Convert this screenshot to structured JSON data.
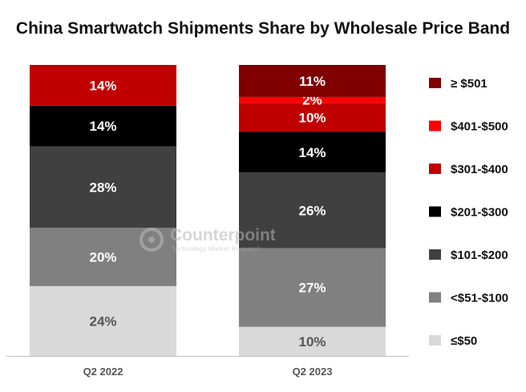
{
  "chart_data": {
    "type": "bar",
    "stacked": true,
    "title": "China Smartwatch Shipments Share by Wholesale Price Band",
    "categories": [
      "Q2 2022",
      "Q2 2023"
    ],
    "series": [
      {
        "name": "≤$50",
        "color": "#d9d9d9",
        "text_color": "#555555",
        "values": [
          24,
          10
        ],
        "labels": [
          "24%",
          "10%"
        ]
      },
      {
        "name": "<$51-$100",
        "color": "#808080",
        "text_color": "#ffffff",
        "values": [
          20,
          27
        ],
        "labels": [
          "20%",
          "27%"
        ]
      },
      {
        "name": "$101-$200",
        "color": "#404040",
        "text_color": "#ffffff",
        "values": [
          28,
          26
        ],
        "labels": [
          "28%",
          "26%"
        ]
      },
      {
        "name": "$201-$300",
        "color": "#000000",
        "text_color": "#ffffff",
        "values": [
          14,
          14
        ],
        "labels": [
          "14%",
          "14%"
        ]
      },
      {
        "name": "$301-$400",
        "color": "#c00000",
        "text_color": "#ffffff",
        "values": [
          14,
          10
        ],
        "labels": [
          "14%",
          "10%"
        ]
      },
      {
        "name": "$401-$500",
        "color": "#ff0000",
        "text_color": "#ffffff",
        "values": [
          0,
          2
        ],
        "labels": [
          "",
          "2%"
        ]
      },
      {
        "name": "≥ $501",
        "color": "#800000",
        "text_color": "#ffffff",
        "values": [
          0,
          11
        ],
        "labels": [
          "",
          "11%"
        ]
      }
    ],
    "legend_order": [
      "≥ $501",
      "$401-$500",
      "$301-$400",
      "$201-$300",
      "$101-$200",
      "<$51-$100",
      "≤$50"
    ],
    "legend_position": "right",
    "xlabel": "",
    "ylabel": "",
    "ylim": [
      0,
      100
    ],
    "grid": false
  },
  "watermark": {
    "name": "Counterpoint",
    "subtitle": "Technology Market Research"
  }
}
